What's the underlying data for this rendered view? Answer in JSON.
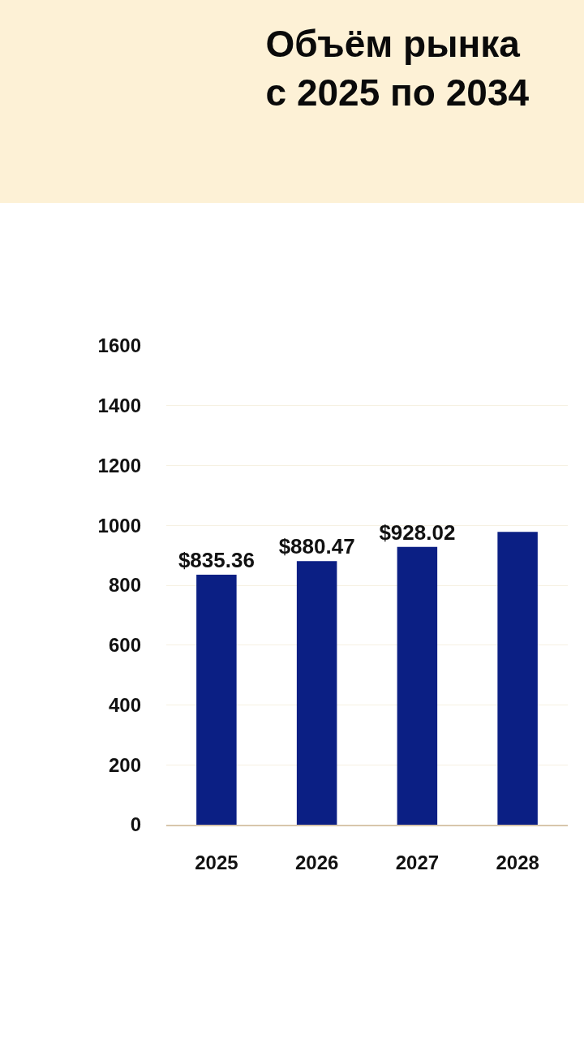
{
  "chart_data": {
    "type": "bar",
    "title": "Объём рынка\nс 2025 по 2034",
    "categories": [
      "2025",
      "2026",
      "2027",
      "2028"
    ],
    "values": [
      835.36,
      880.47,
      928.02,
      978
    ],
    "value_labels": [
      "$835.36",
      "$880.47",
      "$928.02",
      null
    ],
    "color": "#0b1f84",
    "ylim": [
      0,
      1600
    ],
    "yticks": [
      0,
      200,
      400,
      600,
      800,
      1000,
      1200,
      1400,
      1600
    ],
    "grid": true
  }
}
